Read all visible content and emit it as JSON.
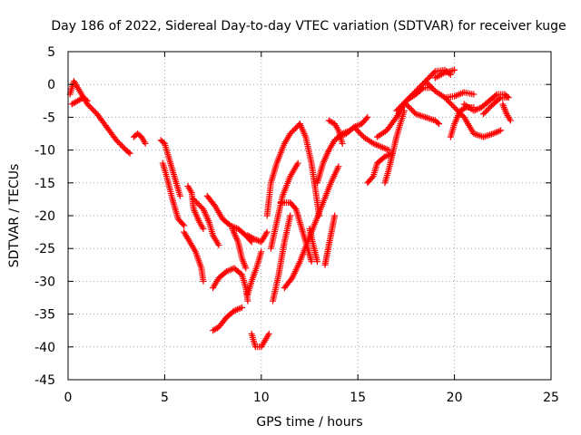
{
  "chart_data": {
    "type": "scatter",
    "title": "Day 186 of 2022, Sidereal Day-to-day VTEC variation (SDTVAR) for receiver kuge",
    "xlabel": "GPS time / hours",
    "ylabel": "SDTVAR / TECUs",
    "xlim": [
      0,
      25
    ],
    "ylim": [
      -45,
      5
    ],
    "xticks": [
      "0",
      "5",
      "10",
      "15",
      "20",
      "25"
    ],
    "yticks": [
      "5",
      "0",
      "-5",
      "-10",
      "-15",
      "-20",
      "-25",
      "-30",
      "-35",
      "-40",
      "-45"
    ],
    "grid": true,
    "marker": "+",
    "colors": {
      "series": "#ff0000",
      "axes": "#000000",
      "grid": "#a0a0a0"
    },
    "series": [
      {
        "tracks": [
          [
            [
              0.1,
              -1.5
            ],
            [
              0.3,
              0.5
            ],
            [
              0.6,
              -1.0
            ],
            [
              1.0,
              -3.0
            ],
            [
              1.5,
              -4.5
            ],
            [
              2.0,
              -6.5
            ],
            [
              2.5,
              -8.5
            ],
            [
              3.0,
              -10.0
            ],
            [
              3.2,
              -10.5
            ]
          ],
          [
            [
              0.2,
              -3.0
            ],
            [
              0.5,
              -2.5
            ],
            [
              0.8,
              -2.0
            ],
            [
              1.0,
              -2.5
            ]
          ],
          [
            [
              3.4,
              -8.0
            ],
            [
              3.6,
              -7.5
            ],
            [
              3.8,
              -8.0
            ],
            [
              4.0,
              -9.0
            ]
          ],
          [
            [
              4.8,
              -8.5
            ],
            [
              5.0,
              -9.0
            ],
            [
              5.2,
              -11.0
            ],
            [
              5.5,
              -14.0
            ],
            [
              5.8,
              -17.0
            ]
          ],
          [
            [
              4.9,
              -12.0
            ],
            [
              5.1,
              -14.0
            ],
            [
              5.4,
              -17.5
            ],
            [
              5.7,
              -20.5
            ],
            [
              6.0,
              -21.5
            ]
          ],
          [
            [
              6.2,
              -15.5
            ],
            [
              6.4,
              -16.5
            ],
            [
              6.5,
              -19.0
            ],
            [
              6.8,
              -21.0
            ],
            [
              7.0,
              -22.0
            ]
          ],
          [
            [
              6.0,
              -22.5
            ],
            [
              6.3,
              -24.0
            ],
            [
              6.6,
              -25.5
            ],
            [
              6.9,
              -28.0
            ],
            [
              7.0,
              -30.0
            ]
          ],
          [
            [
              6.5,
              -17.5
            ],
            [
              7.0,
              -19.0
            ],
            [
              7.3,
              -21.0
            ],
            [
              7.5,
              -23.0
            ],
            [
              7.8,
              -24.5
            ]
          ],
          [
            [
              7.2,
              -17.0
            ],
            [
              7.6,
              -18.5
            ],
            [
              8.0,
              -20.5
            ],
            [
              8.4,
              -21.5
            ],
            [
              8.8,
              -22.0
            ],
            [
              9.2,
              -23.0
            ],
            [
              9.5,
              -24.0
            ]
          ],
          [
            [
              7.5,
              -37.5
            ],
            [
              7.8,
              -37.0
            ],
            [
              8.2,
              -35.5
            ],
            [
              8.6,
              -34.5
            ],
            [
              9.0,
              -34.0
            ]
          ],
          [
            [
              7.5,
              -31.0
            ],
            [
              7.8,
              -29.5
            ],
            [
              8.2,
              -28.5
            ],
            [
              8.6,
              -28.0
            ],
            [
              9.0,
              -29.0
            ],
            [
              9.2,
              -31.0
            ],
            [
              9.3,
              -33.0
            ]
          ],
          [
            [
              8.5,
              -22.0
            ],
            [
              8.8,
              -24.0
            ],
            [
              9.0,
              -26.5
            ],
            [
              9.2,
              -28.0
            ]
          ],
          [
            [
              9.3,
              -23.0
            ],
            [
              9.6,
              -23.5
            ],
            [
              10.0,
              -24.0
            ],
            [
              10.3,
              -22.5
            ]
          ],
          [
            [
              9.3,
              -32.0
            ],
            [
              9.5,
              -30.0
            ],
            [
              9.8,
              -27.5
            ],
            [
              10.0,
              -25.5
            ]
          ],
          [
            [
              9.5,
              -38.0
            ],
            [
              9.7,
              -40.0
            ],
            [
              10.0,
              -40.0
            ],
            [
              10.4,
              -38.0
            ]
          ],
          [
            [
              10.3,
              -20.0
            ],
            [
              10.5,
              -15.0
            ],
            [
              10.8,
              -12.0
            ],
            [
              11.2,
              -9.0
            ],
            [
              11.5,
              -7.5
            ],
            [
              12.0,
              -6.0
            ]
          ],
          [
            [
              10.5,
              -25.0
            ],
            [
              10.8,
              -21.0
            ],
            [
              11.1,
              -17.0
            ],
            [
              11.5,
              -14.0
            ],
            [
              11.9,
              -12.0
            ]
          ],
          [
            [
              10.6,
              -33.0
            ],
            [
              10.9,
              -29.0
            ],
            [
              11.2,
              -24.0
            ],
            [
              11.5,
              -20.0
            ]
          ],
          [
            [
              11.0,
              -18.0
            ],
            [
              11.5,
              -18.0
            ],
            [
              11.8,
              -19.0
            ],
            [
              12.0,
              -21.0
            ],
            [
              12.3,
              -24.0
            ],
            [
              12.6,
              -27.0
            ]
          ],
          [
            [
              11.2,
              -31.0
            ],
            [
              11.6,
              -29.5
            ],
            [
              12.0,
              -27.0
            ],
            [
              12.4,
              -24.0
            ],
            [
              12.8,
              -21.0
            ],
            [
              13.2,
              -18.0
            ],
            [
              13.6,
              -15.0
            ],
            [
              14.0,
              -12.5
            ]
          ],
          [
            [
              12.0,
              -6.0
            ],
            [
              12.3,
              -8.0
            ],
            [
              12.6,
              -12.0
            ],
            [
              12.8,
              -16.0
            ],
            [
              13.0,
              -20.0
            ]
          ],
          [
            [
              12.5,
              -22.0
            ],
            [
              12.7,
              -24.5
            ],
            [
              12.9,
              -27.0
            ]
          ],
          [
            [
              12.9,
              -15.0
            ],
            [
              13.2,
              -12.0
            ],
            [
              13.5,
              -10.0
            ],
            [
              13.8,
              -8.5
            ],
            [
              14.2,
              -7.5
            ],
            [
              14.6,
              -7.0
            ]
          ],
          [
            [
              13.5,
              -5.5
            ],
            [
              13.8,
              -6.0
            ],
            [
              14.0,
              -7.0
            ],
            [
              14.2,
              -9.0
            ]
          ],
          [
            [
              13.8,
              -20.0
            ],
            [
              13.6,
              -23.0
            ],
            [
              13.4,
              -26.0
            ],
            [
              13.3,
              -27.5
            ]
          ],
          [
            [
              14.0,
              -8.0
            ],
            [
              14.4,
              -7.5
            ],
            [
              14.8,
              -6.5
            ],
            [
              15.2,
              -6.0
            ],
            [
              15.5,
              -5.0
            ]
          ],
          [
            [
              14.8,
              -6.5
            ],
            [
              15.3,
              -8.0
            ],
            [
              15.8,
              -9.0
            ],
            [
              16.2,
              -9.5
            ],
            [
              16.6,
              -10.0
            ]
          ],
          [
            [
              15.5,
              -15.0
            ],
            [
              15.8,
              -14.0
            ],
            [
              16.0,
              -12.0
            ],
            [
              16.4,
              -11.0
            ],
            [
              16.8,
              -10.5
            ]
          ],
          [
            [
              16.4,
              -15.0
            ],
            [
              16.6,
              -13.0
            ],
            [
              16.8,
              -10.5
            ],
            [
              17.0,
              -8.0
            ],
            [
              17.2,
              -6.0
            ],
            [
              17.4,
              -4.0
            ]
          ],
          [
            [
              16.0,
              -8.0
            ],
            [
              16.5,
              -7.0
            ],
            [
              17.0,
              -5.0
            ],
            [
              17.5,
              -2.5
            ],
            [
              18.0,
              -1.0
            ],
            [
              18.5,
              0.5
            ],
            [
              19.0,
              2.0
            ],
            [
              19.5,
              2.2
            ],
            [
              19.8,
              1.5
            ]
          ],
          [
            [
              17.0,
              -4.0
            ],
            [
              17.5,
              -2.5
            ],
            [
              18.0,
              -1.5
            ],
            [
              18.4,
              -0.5
            ],
            [
              18.8,
              -0.5
            ]
          ],
          [
            [
              17.5,
              -3.0
            ],
            [
              18.0,
              -4.5
            ],
            [
              18.5,
              -5.0
            ],
            [
              19.0,
              -5.5
            ],
            [
              19.2,
              -6.0
            ]
          ],
          [
            [
              18.5,
              0.5
            ],
            [
              19.0,
              -1.0
            ],
            [
              19.5,
              -2.0
            ],
            [
              20.0,
              -1.8
            ],
            [
              20.5,
              -1.2
            ],
            [
              21.0,
              -1.5
            ]
          ],
          [
            [
              19.0,
              1.0
            ],
            [
              19.5,
              1.8
            ],
            [
              20.0,
              2.2
            ]
          ],
          [
            [
              19.5,
              -2.0
            ],
            [
              20.0,
              -3.5
            ],
            [
              20.5,
              -5.0
            ],
            [
              20.8,
              -6.5
            ],
            [
              21.0,
              -7.5
            ],
            [
              21.5,
              -8.0
            ],
            [
              22.0,
              -7.5
            ],
            [
              22.4,
              -7.0
            ]
          ],
          [
            [
              19.8,
              -8.0
            ],
            [
              20.0,
              -6.0
            ],
            [
              20.3,
              -4.0
            ],
            [
              20.6,
              -3.5
            ],
            [
              21.0,
              -3.5
            ]
          ],
          [
            [
              20.5,
              -3.0
            ],
            [
              21.0,
              -4.0
            ],
            [
              21.4,
              -3.5
            ],
            [
              21.8,
              -2.5
            ],
            [
              22.2,
              -1.5
            ],
            [
              22.6,
              -1.5
            ],
            [
              22.8,
              -2.0
            ]
          ],
          [
            [
              21.5,
              -4.5
            ],
            [
              22.0,
              -3.0
            ],
            [
              22.4,
              -2.0
            ],
            [
              22.7,
              -2.0
            ]
          ],
          [
            [
              22.5,
              -3.0
            ],
            [
              22.7,
              -4.5
            ],
            [
              22.9,
              -5.5
            ]
          ]
        ]
      }
    ]
  }
}
